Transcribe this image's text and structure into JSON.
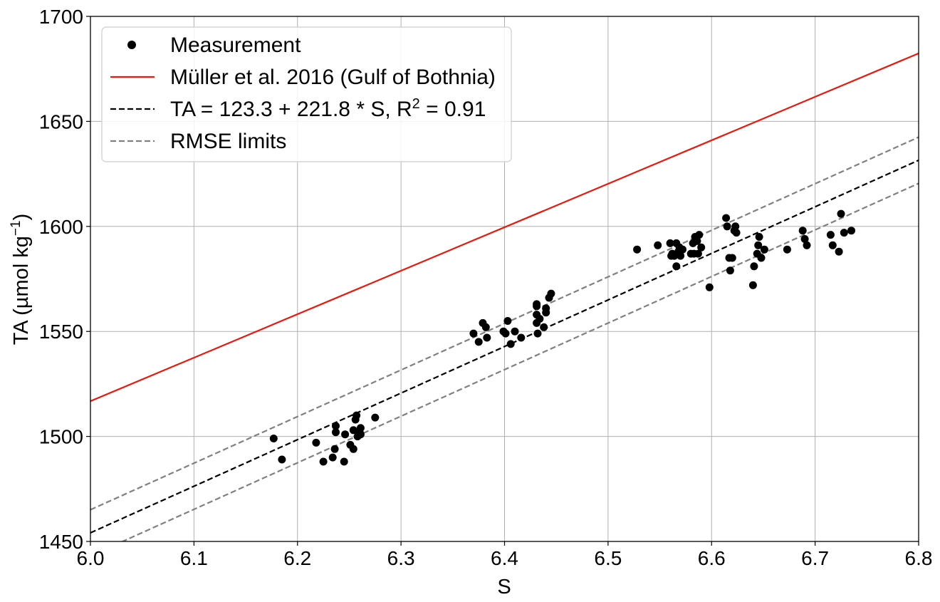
{
  "chart_data": {
    "type": "scatter",
    "xlabel": "S",
    "ylabel": {
      "main": "TA (µmol kg",
      "sup": "−1",
      "close": ")"
    },
    "xlim": [
      6.0,
      6.8
    ],
    "ylim": [
      1450,
      1700
    ],
    "xticks": [
      "6.0",
      "6.1",
      "6.2",
      "6.3",
      "6.4",
      "6.5",
      "6.6",
      "6.7",
      "6.8"
    ],
    "yticks": [
      "1450",
      "1500",
      "1550",
      "1600",
      "1650",
      "1700"
    ],
    "grid": true,
    "legend_position": "top-left",
    "legend": [
      {
        "label": "Measurement",
        "style": "marker",
        "color": "#000000"
      },
      {
        "label": "Müller et al. 2016 (Gulf of Bothnia)",
        "style": "solid",
        "color": "#e8190f"
      },
      {
        "label_main": "TA = 123.3 + 221.8 * S, R",
        "label_sup": "2",
        "label_tail": " = 0.91",
        "style": "dashed",
        "color": "#000000"
      },
      {
        "label": "RMSE limits",
        "style": "dashed",
        "color": "#808080"
      }
    ],
    "series": [
      {
        "name": "Measurement",
        "kind": "scatter",
        "color": "#000000",
        "points": [
          [
            6.177,
            1499
          ],
          [
            6.185,
            1489
          ],
          [
            6.218,
            1497
          ],
          [
            6.225,
            1488
          ],
          [
            6.234,
            1490
          ],
          [
            6.236,
            1494
          ],
          [
            6.237,
            1502
          ],
          [
            6.237,
            1505
          ],
          [
            6.245,
            1488
          ],
          [
            6.246,
            1501
          ],
          [
            6.251,
            1496
          ],
          [
            6.254,
            1494
          ],
          [
            6.254,
            1503
          ],
          [
            6.256,
            1508
          ],
          [
            6.257,
            1510
          ],
          [
            6.258,
            1500
          ],
          [
            6.26,
            1502
          ],
          [
            6.261,
            1501
          ],
          [
            6.261,
            1504
          ],
          [
            6.275,
            1509
          ],
          [
            6.37,
            1549
          ],
          [
            6.375,
            1545
          ],
          [
            6.379,
            1554
          ],
          [
            6.382,
            1552
          ],
          [
            6.383,
            1547
          ],
          [
            6.399,
            1550
          ],
          [
            6.401,
            1549
          ],
          [
            6.403,
            1555
          ],
          [
            6.406,
            1544
          ],
          [
            6.41,
            1550
          ],
          [
            6.416,
            1547
          ],
          [
            6.431,
            1563
          ],
          [
            6.431,
            1562
          ],
          [
            6.431,
            1558
          ],
          [
            6.431,
            1554
          ],
          [
            6.432,
            1549
          ],
          [
            6.434,
            1556
          ],
          [
            6.438,
            1552
          ],
          [
            6.44,
            1561
          ],
          [
            6.44,
            1559
          ],
          [
            6.443,
            1566
          ],
          [
            6.445,
            1568
          ],
          [
            6.528,
            1589
          ],
          [
            6.548,
            1591
          ],
          [
            6.56,
            1592
          ],
          [
            6.561,
            1586
          ],
          [
            6.562,
            1587
          ],
          [
            6.564,
            1586
          ],
          [
            6.566,
            1592
          ],
          [
            6.566,
            1581
          ],
          [
            6.568,
            1588
          ],
          [
            6.569,
            1590
          ],
          [
            6.57,
            1586
          ],
          [
            6.571,
            1589
          ],
          [
            6.572,
            1589
          ],
          [
            6.58,
            1587
          ],
          [
            6.582,
            1592
          ],
          [
            6.583,
            1587
          ],
          [
            6.584,
            1595
          ],
          [
            6.586,
            1593
          ],
          [
            6.587,
            1587
          ],
          [
            6.588,
            1596
          ],
          [
            6.59,
            1590
          ],
          [
            6.598,
            1571
          ],
          [
            6.614,
            1604
          ],
          [
            6.615,
            1600
          ],
          [
            6.617,
            1585
          ],
          [
            6.618,
            1579
          ],
          [
            6.62,
            1585
          ],
          [
            6.622,
            1598
          ],
          [
            6.623,
            1600
          ],
          [
            6.624,
            1597
          ],
          [
            6.64,
            1572
          ],
          [
            6.641,
            1581
          ],
          [
            6.644,
            1587
          ],
          [
            6.645,
            1591
          ],
          [
            6.646,
            1595
          ],
          [
            6.648,
            1585
          ],
          [
            6.651,
            1589
          ],
          [
            6.673,
            1589
          ],
          [
            6.688,
            1598
          ],
          [
            6.69,
            1594
          ],
          [
            6.692,
            1591
          ],
          [
            6.715,
            1596
          ],
          [
            6.717,
            1591
          ],
          [
            6.723,
            1588
          ],
          [
            6.725,
            1606
          ],
          [
            6.728,
            1597
          ],
          [
            6.735,
            1598
          ]
        ]
      },
      {
        "name": "Müller et al. 2016 (Gulf of Bothnia)",
        "kind": "line",
        "style": "solid",
        "color": "#e8190f",
        "points": [
          [
            6.0,
            1516.8
          ],
          [
            6.8,
            1682.4
          ]
        ]
      },
      {
        "name": "TA = 123.3 + 221.8 * S, R2 = 0.91",
        "kind": "line",
        "style": "dashed",
        "color": "#000000",
        "points": [
          [
            6.0,
            1454.1
          ],
          [
            6.8,
            1631.5
          ]
        ]
      },
      {
        "name": "RMSE limits",
        "kind": "line",
        "style": "dashed",
        "color": "#808080",
        "points": [
          [
            6.0,
            1465.1
          ],
          [
            6.8,
            1642.5
          ]
        ]
      },
      {
        "name": "RMSE limits",
        "kind": "line",
        "style": "dashed",
        "color": "#808080",
        "points": [
          [
            6.0,
            1443.1
          ],
          [
            6.8,
            1620.5
          ]
        ]
      }
    ]
  }
}
